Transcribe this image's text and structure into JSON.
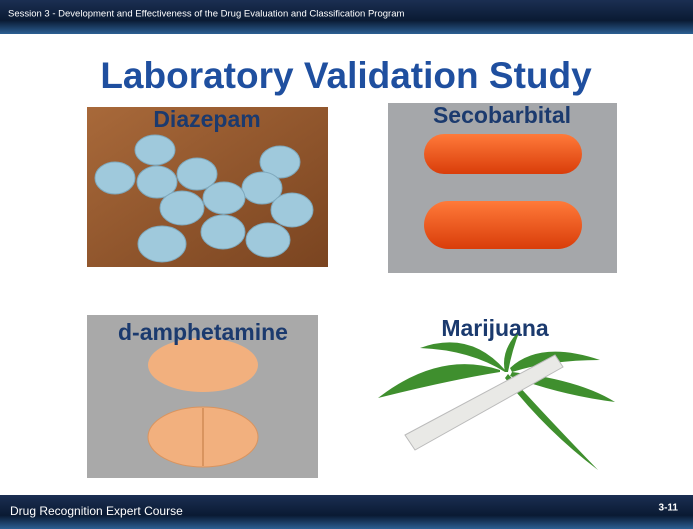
{
  "header": {
    "session": "Session 3 - Development and Effectiveness of the Drug Evaluation and Classification Program"
  },
  "slide": {
    "title": "Laboratory Validation Study",
    "panels": [
      {
        "label": "Diazepam"
      },
      {
        "label": "Secobarbital"
      },
      {
        "label": "d-amphetamine"
      },
      {
        "label": "Marijuana"
      }
    ]
  },
  "footer": {
    "course": "Drug Recognition Expert Course",
    "page": "3-11"
  }
}
